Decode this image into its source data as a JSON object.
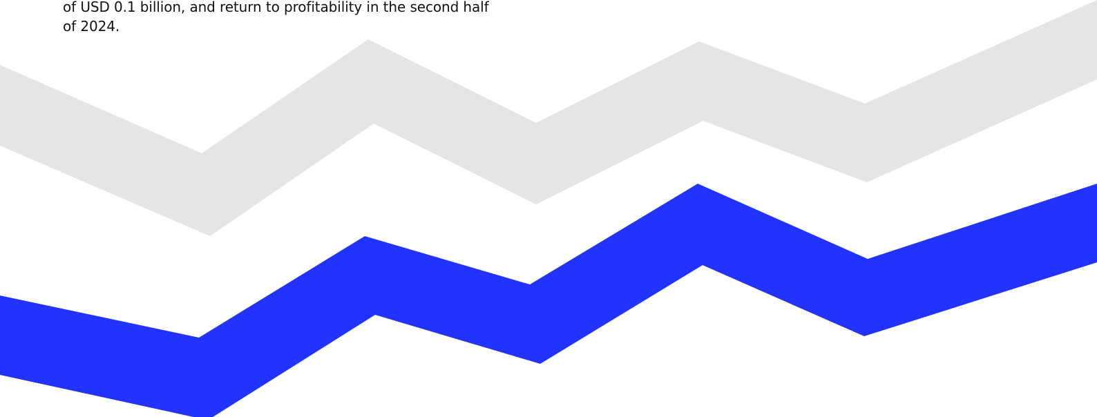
{
  "text": {
    "line1": "of USD 0.1 billion, and return to profitability in the second half",
    "line2": "of 2024."
  },
  "colors": {
    "background": "#ffffff",
    "text": "#111111",
    "grey_band": "#e5e5e5",
    "blue_band": "#2233ff"
  }
}
